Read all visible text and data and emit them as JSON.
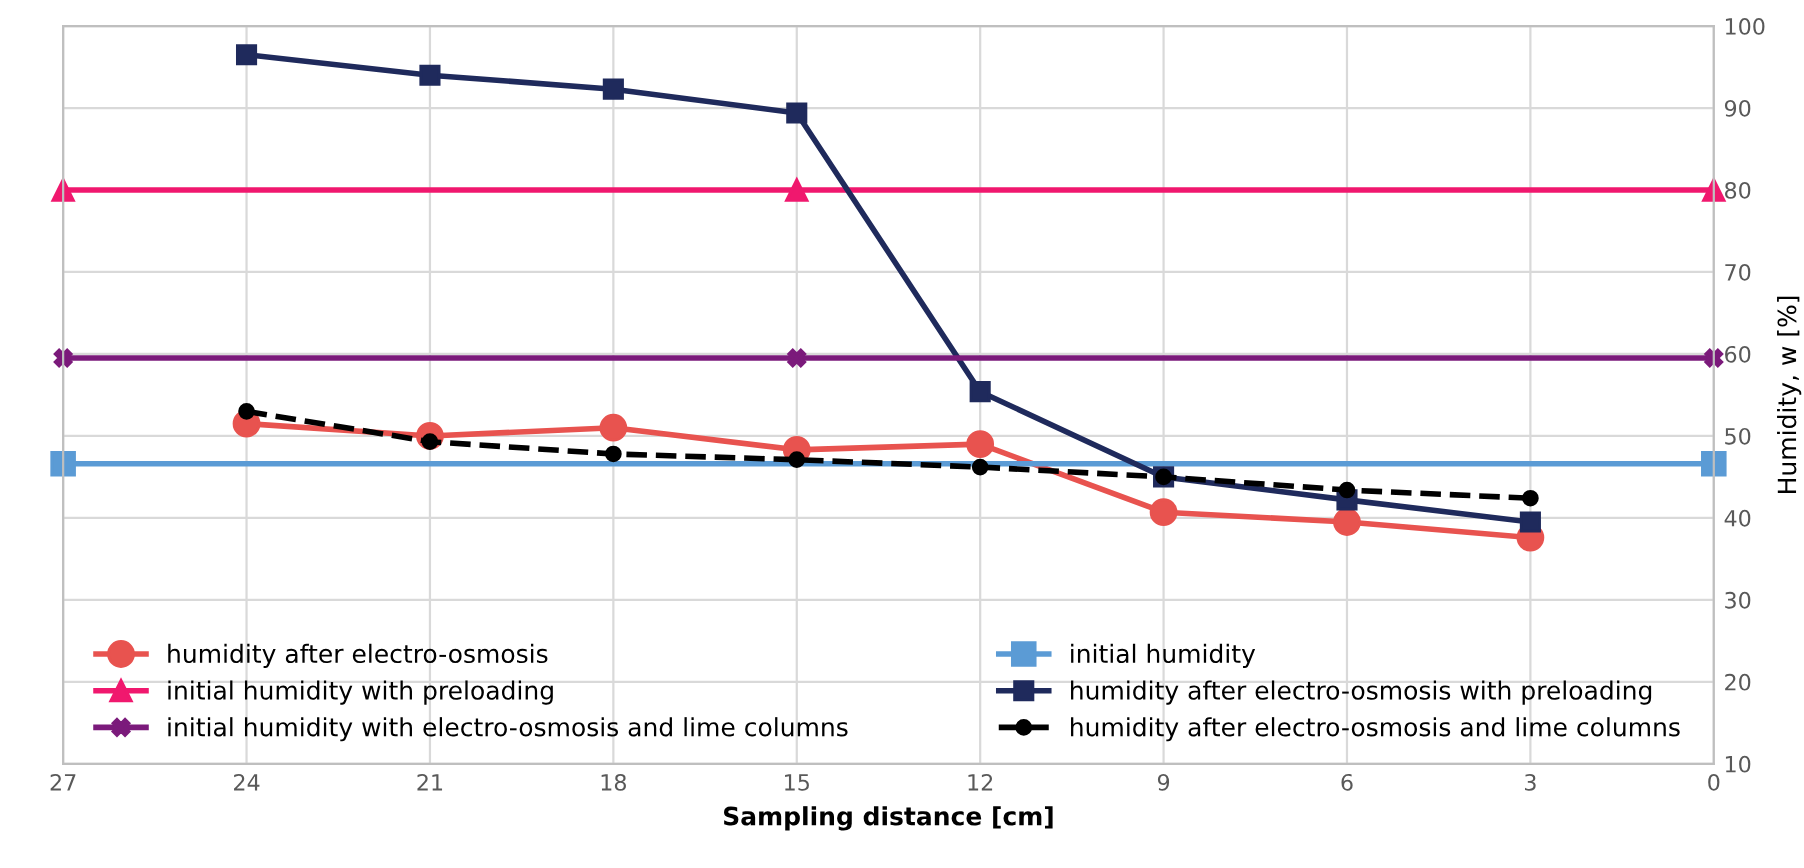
{
  "chart_data": {
    "type": "line",
    "xlabel": "Sampling distance [cm]",
    "ylabel": "Humidity, w [%]",
    "xlim": [
      27,
      0
    ],
    "xticks": [
      27,
      24,
      21,
      18,
      15,
      12,
      9,
      6,
      3,
      0
    ],
    "ylim": [
      10,
      100
    ],
    "yticks": [
      10,
      20,
      30,
      40,
      50,
      60,
      70,
      80,
      90,
      100
    ],
    "grid": true,
    "legend": "bottom",
    "series": [
      {
        "name": "humidity after electro-osmosis",
        "color": "#e8534f",
        "marker": "circle",
        "x": [
          24,
          21,
          18,
          15,
          12,
          9,
          6,
          3
        ],
        "values": [
          51.5,
          50,
          51,
          48.3,
          49,
          40.7,
          39.5,
          37.6
        ]
      },
      {
        "name": "initial humidity",
        "color": "#5b9bd5",
        "marker": "square",
        "x": [
          27,
          0
        ],
        "values": [
          46.6,
          46.6
        ]
      },
      {
        "name": "initial humidity with preloading",
        "color": "#f0186e",
        "marker": "triangle",
        "x": [
          27,
          15,
          0
        ],
        "values": [
          80,
          80,
          80
        ]
      },
      {
        "name": "humidity after electro-osmosis with preloading",
        "color": "#1f2a5c",
        "marker": "square",
        "x": [
          24,
          21,
          18,
          15,
          12,
          9,
          6,
          3
        ],
        "values": [
          96.5,
          94,
          92.3,
          89.4,
          55.4,
          45,
          42.2,
          39.5
        ]
      },
      {
        "name": "initial humidity with electro-osmosis and lime columns",
        "color": "#7b1a7b",
        "marker": "cross",
        "x": [
          27,
          15,
          0
        ],
        "values": [
          59.5,
          59.5,
          59.5
        ]
      },
      {
        "name": "humidity after electro-osmosis and lime columns",
        "color": "#000000",
        "marker": "circle",
        "line_style": "dashed",
        "x": [
          24,
          21,
          18,
          15,
          12,
          9,
          6,
          3
        ],
        "values": [
          53,
          49.3,
          47.8,
          47.1,
          46.2,
          45,
          43.4,
          42.4
        ]
      }
    ]
  }
}
